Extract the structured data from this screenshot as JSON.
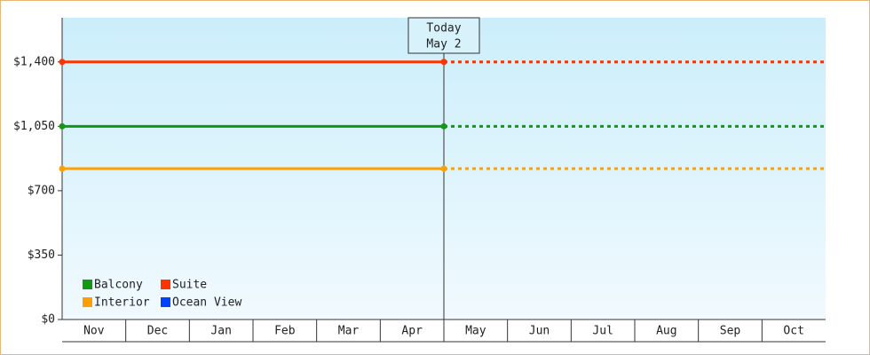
{
  "chart_data": {
    "type": "line",
    "categories": [
      "Nov",
      "Dec",
      "Jan",
      "Feb",
      "Mar",
      "Apr",
      "May",
      "Jun",
      "Jul",
      "Aug",
      "Sep",
      "Oct"
    ],
    "series": [
      {
        "name": "Balcony",
        "color": "#119911",
        "values": [
          1050,
          1050,
          1050,
          1050,
          1050,
          1050,
          1050,
          1050,
          1050,
          1050,
          1050,
          1050
        ]
      },
      {
        "name": "Suite",
        "color": "#ff3300",
        "values": [
          1400,
          1400,
          1400,
          1400,
          1400,
          1400,
          1400,
          1400,
          1400,
          1400,
          1400,
          1400
        ]
      },
      {
        "name": "Interior",
        "color": "#ffa000",
        "values": [
          820,
          820,
          820,
          820,
          820,
          820,
          820,
          820,
          820,
          820,
          820,
          820
        ]
      },
      {
        "name": "Ocean View",
        "color": "#0044ff",
        "values": [
          null,
          null,
          null,
          null,
          null,
          null,
          null,
          null,
          null,
          null,
          null,
          null
        ]
      }
    ],
    "ylim": [
      0,
      1640
    ],
    "yticks": [
      {
        "value": 0,
        "label": "$0"
      },
      {
        "value": 350,
        "label": "$350"
      },
      {
        "value": 700,
        "label": "$700"
      },
      {
        "value": 1050,
        "label": "$1,050"
      },
      {
        "value": 1400,
        "label": "$1,400"
      }
    ],
    "today": {
      "label": [
        "Today",
        "May 2"
      ],
      "category": "May"
    },
    "legend": "lower left"
  }
}
